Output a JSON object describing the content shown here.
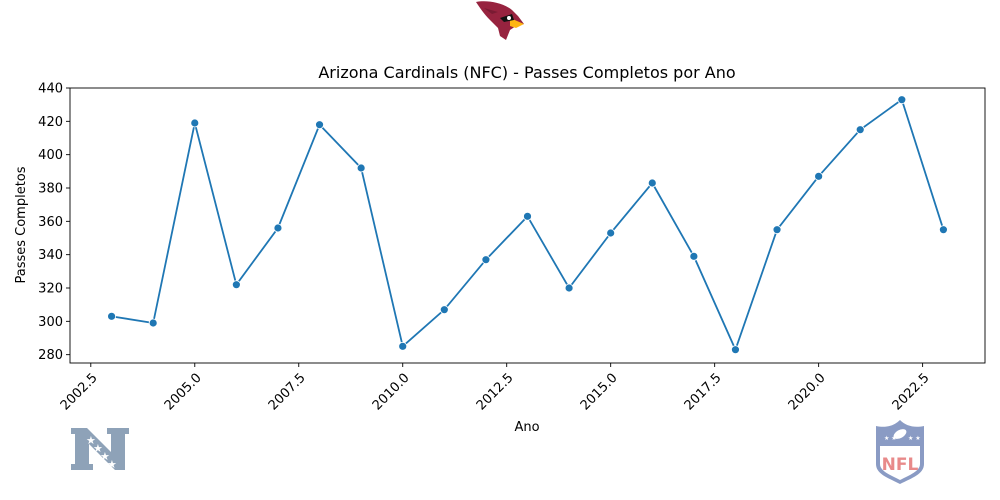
{
  "chart_data": {
    "type": "line",
    "title": "Arizona Cardinals (NFC) - Passes Completos por Ano",
    "xlabel": "Ano",
    "ylabel": "Passes Completos",
    "xlim": [
      2002.0,
      2024.0
    ],
    "ylim": [
      275,
      440
    ],
    "x_ticks": [
      "2002.5",
      "2005.0",
      "2007.5",
      "2010.0",
      "2012.5",
      "2015.0",
      "2017.5",
      "2020.0",
      "2022.5"
    ],
    "y_ticks": [
      "280",
      "300",
      "320",
      "340",
      "360",
      "380",
      "400",
      "420",
      "440"
    ],
    "grid": false,
    "series": [
      {
        "color": "#1f77b4",
        "x": [
          2003,
          2004,
          2005,
          2006,
          2007,
          2008,
          2009,
          2010,
          2011,
          2012,
          2013,
          2014,
          2015,
          2016,
          2017,
          2018,
          2019,
          2020,
          2021,
          2022,
          2023
        ],
        "y": [
          303,
          299,
          419,
          322,
          356,
          418,
          392,
          285,
          307,
          337,
          363,
          320,
          353,
          383,
          339,
          283,
          355,
          387,
          415,
          433,
          355
        ]
      }
    ]
  },
  "logos": {
    "team_logo": "cardinal-head-logo",
    "conference_logo": "nfc-logo",
    "league_logo": "nfl-shield-logo",
    "league_logo_text": "NFL"
  },
  "colors": {
    "line": "#1f77b4",
    "cardinal_red": "#97233f",
    "cardinal_beak": "#ffb612",
    "nfc_blue": "#8ea2b8",
    "nfl_red": "#e88a8a",
    "nfl_blue": "#8a9bc4"
  }
}
